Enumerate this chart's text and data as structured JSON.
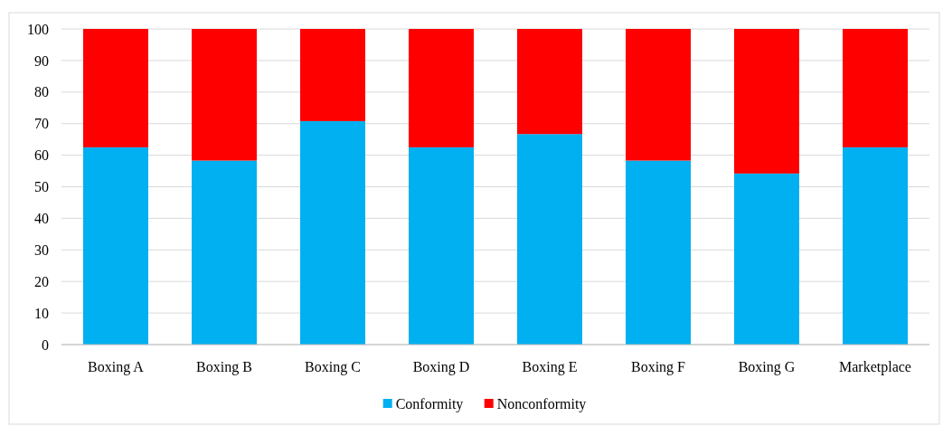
{
  "chart_data": {
    "type": "bar",
    "stacked": true,
    "categories": [
      "Boxing A",
      "Boxing B",
      "Boxing C",
      "Boxing D",
      "Boxing E",
      "Boxing F",
      "Boxing G",
      "Marketplace"
    ],
    "series": [
      {
        "name": "Conformity",
        "color": "#00b0f0",
        "values": [
          62.5,
          58.3,
          70.8,
          62.5,
          66.7,
          58.3,
          54.2,
          62.5
        ]
      },
      {
        "name": "Nonconformity",
        "color": "#ff0000",
        "values": [
          37.5,
          41.7,
          29.2,
          37.5,
          33.3,
          41.7,
          45.8,
          37.5
        ]
      }
    ],
    "ylim": [
      0,
      100
    ],
    "yticks": [
      0,
      10,
      20,
      30,
      40,
      50,
      60,
      70,
      80,
      90,
      100
    ],
    "grid": "y",
    "legend": "bottom"
  }
}
